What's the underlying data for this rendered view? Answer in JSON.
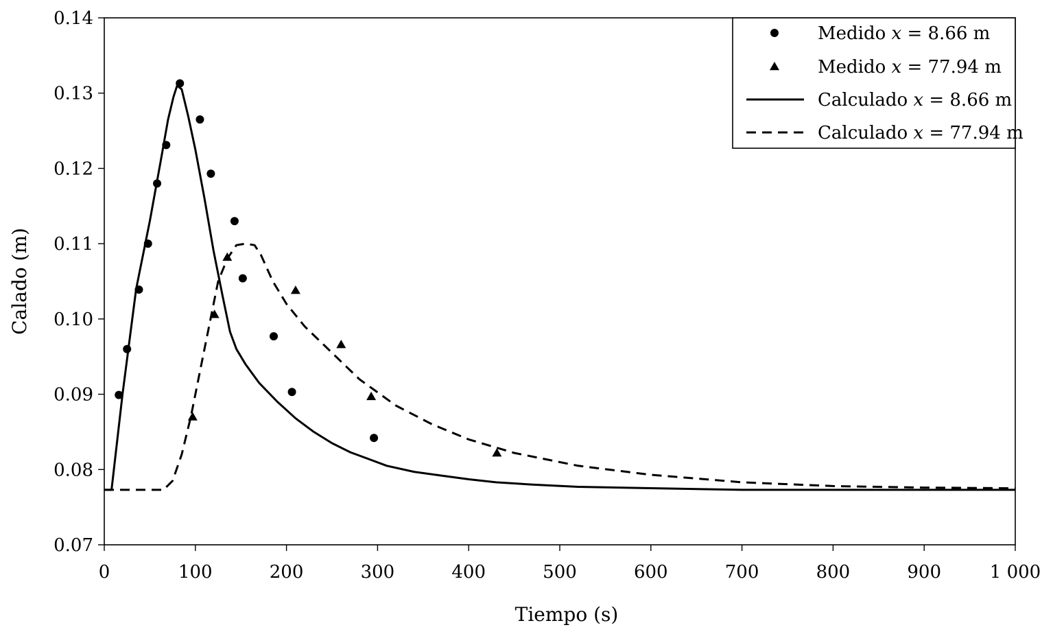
{
  "chart_data": {
    "type": "line",
    "title": "",
    "xlabel": "Tiempo (s)",
    "ylabel": "Calado (m)",
    "xlim": [
      0,
      1000
    ],
    "ylim": [
      0.07,
      0.14
    ],
    "x_ticks": [
      0,
      100,
      200,
      300,
      400,
      500,
      600,
      700,
      800,
      900,
      1000
    ],
    "x_tick_labels": [
      "0",
      "100",
      "200",
      "300",
      "400",
      "500",
      "600",
      "700",
      "800",
      "900",
      "1 000"
    ],
    "y_ticks": [
      0.07,
      0.08,
      0.09,
      0.1,
      0.11,
      0.12,
      0.13,
      0.14
    ],
    "y_tick_labels": [
      "0.07",
      "0.08",
      "0.09",
      "0.10",
      "0.11",
      "0.12",
      "0.13",
      "0.14"
    ],
    "grid": false,
    "legend_position": "top-right",
    "series": [
      {
        "name": "Medido x = 8.66 m",
        "legend_prefix": "Medido ",
        "legend_var": "x",
        "legend_suffix": " = 8.66 m",
        "kind": "scatter",
        "marker": "circle",
        "x": [
          16,
          25,
          38,
          48,
          58,
          68,
          83,
          105,
          117,
          143,
          152,
          186,
          206,
          296
        ],
        "y": [
          0.0899,
          0.096,
          0.1039,
          0.11,
          0.118,
          0.1231,
          0.1313,
          0.1265,
          0.1193,
          0.113,
          0.1054,
          0.0977,
          0.0903,
          0.0842
        ]
      },
      {
        "name": "Medido x = 77.94 m",
        "legend_prefix": "Medido ",
        "legend_var": "x",
        "legend_suffix": " = 77.94 m",
        "kind": "scatter",
        "marker": "triangle",
        "x": [
          97,
          121,
          135,
          210,
          260,
          293,
          431
        ],
        "y": [
          0.087,
          0.1006,
          0.1082,
          0.1038,
          0.0966,
          0.0897,
          0.0822
        ]
      },
      {
        "name": "Calculado x = 8.66 m",
        "legend_prefix": "Calculado ",
        "legend_var": "x",
        "legend_suffix": " = 8.66 m",
        "kind": "line",
        "dash": "solid",
        "x": [
          0,
          8,
          20,
          35,
          50,
          62,
          70,
          76,
          80,
          85,
          92,
          100,
          110,
          120,
          130,
          138,
          145,
          155,
          170,
          190,
          210,
          230,
          250,
          270,
          290,
          310,
          340,
          370,
          400,
          430,
          470,
          520,
          610,
          700,
          1000
        ],
        "y": [
          0.0773,
          0.0773,
          0.09,
          0.104,
          0.113,
          0.121,
          0.1265,
          0.1295,
          0.131,
          0.1305,
          0.127,
          0.1225,
          0.116,
          0.109,
          0.103,
          0.0983,
          0.096,
          0.094,
          0.0915,
          0.089,
          0.0868,
          0.085,
          0.0835,
          0.0823,
          0.0814,
          0.0805,
          0.0797,
          0.0792,
          0.0787,
          0.0783,
          0.078,
          0.0777,
          0.0775,
          0.0773,
          0.0773
        ]
      },
      {
        "name": "Calculado x = 77.94 m",
        "legend_prefix": "Calculado ",
        "legend_var": "x",
        "legend_suffix": " = 77.94 m",
        "kind": "line",
        "dash": "dashed",
        "x": [
          0,
          65,
          75,
          85,
          95,
          105,
          115,
          125,
          135,
          145,
          155,
          165,
          172,
          185,
          200,
          220,
          250,
          280,
          320,
          360,
          400,
          450,
          520,
          600,
          700,
          800,
          900,
          1000
        ],
        "y": [
          0.0773,
          0.0773,
          0.0785,
          0.082,
          0.087,
          0.093,
          0.099,
          0.105,
          0.108,
          0.1098,
          0.11,
          0.1098,
          0.1085,
          0.105,
          0.102,
          0.099,
          0.0955,
          0.092,
          0.0885,
          0.086,
          0.084,
          0.0822,
          0.0805,
          0.0793,
          0.0783,
          0.0778,
          0.0776,
          0.0775
        ]
      }
    ]
  }
}
